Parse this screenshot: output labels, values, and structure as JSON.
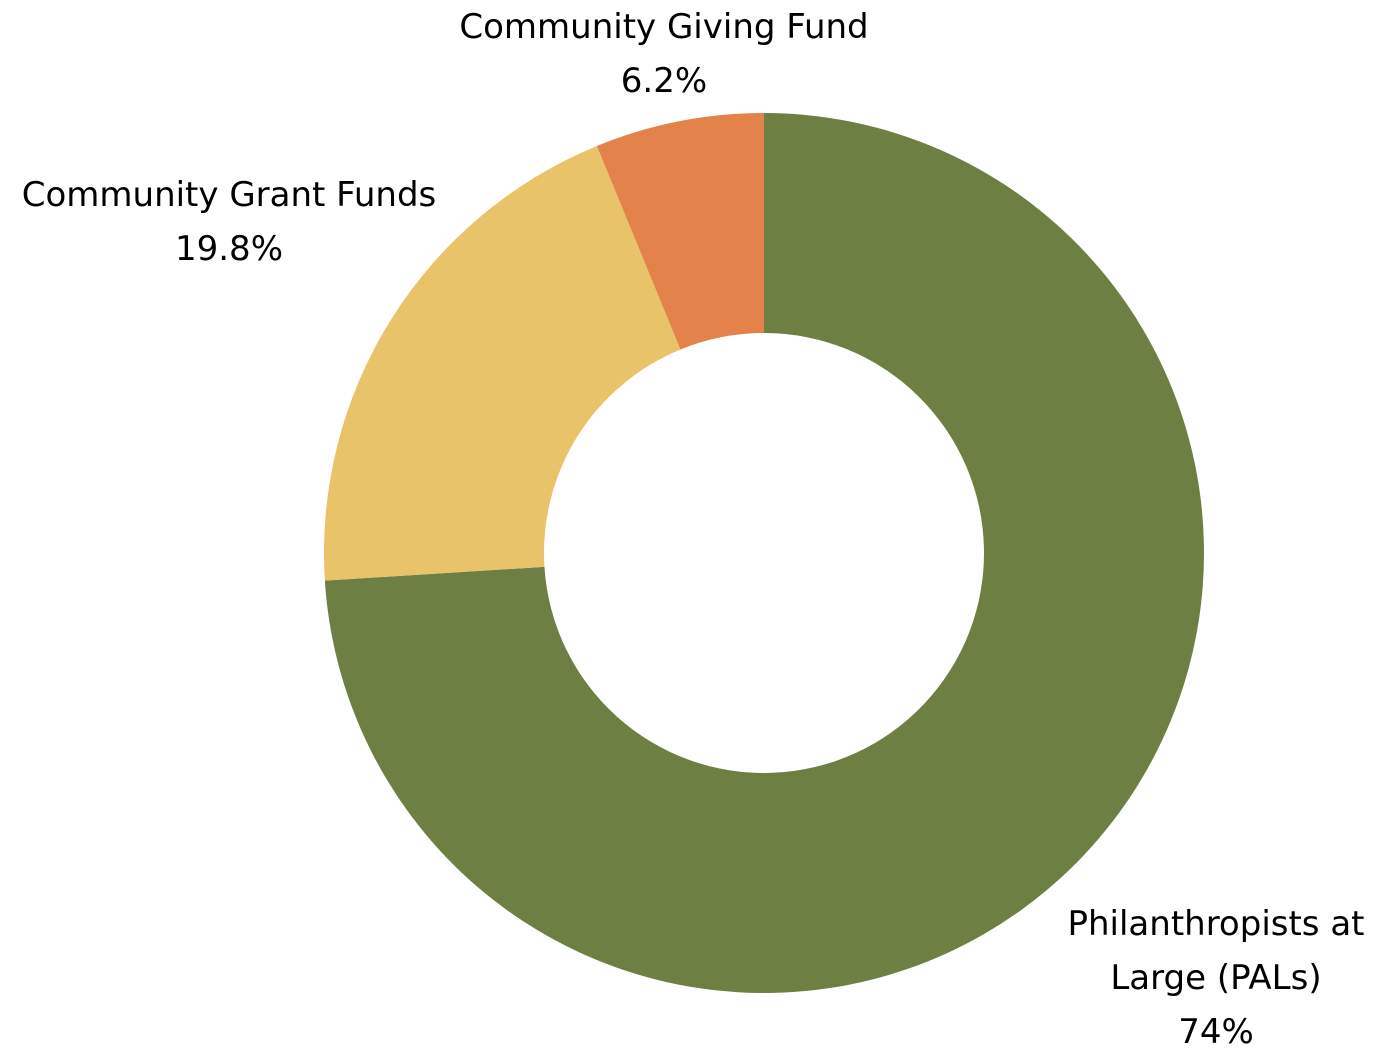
{
  "chart_data": {
    "type": "pie",
    "donut": true,
    "title": "",
    "legend": "none",
    "slices": [
      {
        "label": "Philanthropists at Large (PALs)",
        "label_lines": [
          "Philanthropists at",
          "Large (PALs)"
        ],
        "percent_label": "74%",
        "value": 74.0,
        "color": "#6d7f43"
      },
      {
        "label": "Community Grant Funds",
        "label_lines": [
          "Community Grant Funds"
        ],
        "percent_label": "19.8%",
        "value": 19.8,
        "color": "#e8c36a"
      },
      {
        "label": "Community Giving Fund",
        "label_lines": [
          "Community Giving Fund"
        ],
        "percent_label": "6.2%",
        "value": 6.2,
        "color": "#e3824a"
      }
    ]
  }
}
